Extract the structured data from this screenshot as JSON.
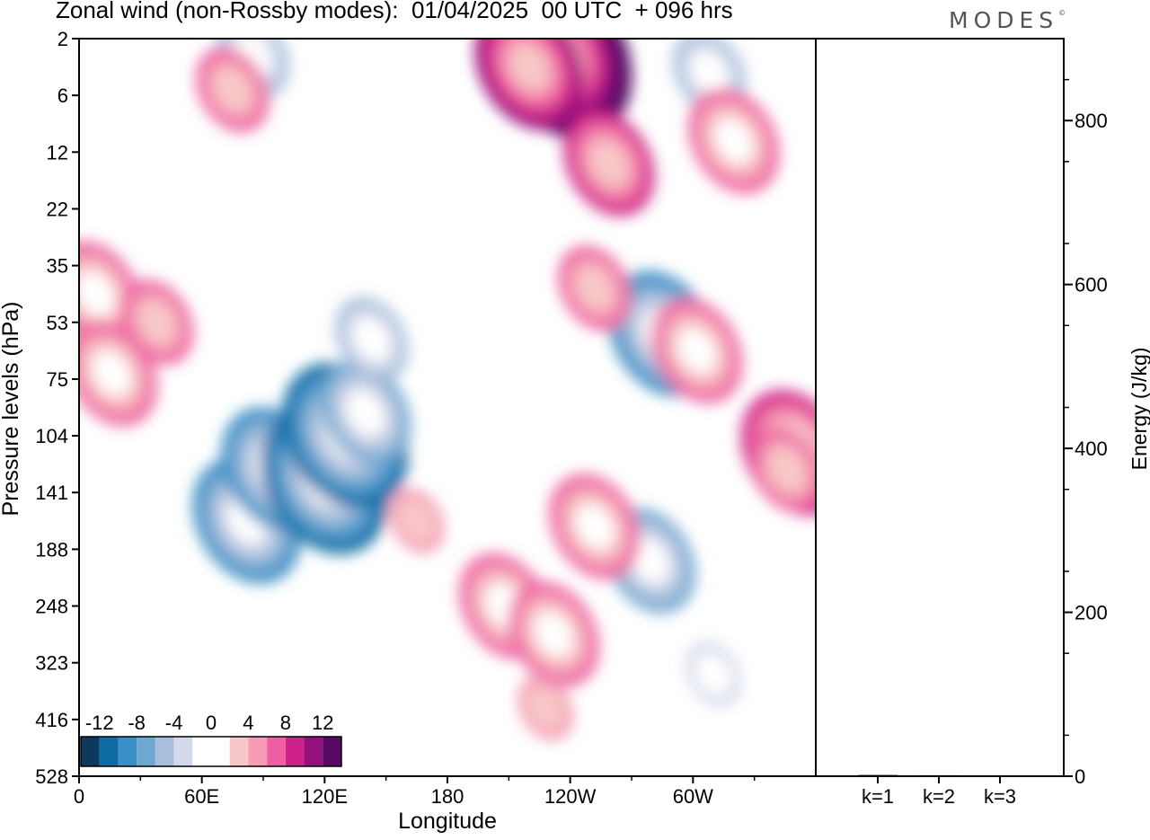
{
  "header": {
    "title": "Zonal wind (non-Rossby modes):  01/04/2025  00 UTC  + 096 hrs",
    "logo_text": "MODES",
    "logo_mark": "©"
  },
  "colors": {
    "levels": [
      "#0d3a5c",
      "#0e6aa3",
      "#3a8fc4",
      "#6ea7d1",
      "#a7bfdc",
      "#d3d8ea",
      "#ffffff",
      "#ffffff",
      "#f8c8c8",
      "#f59bb5",
      "#ed5fa1",
      "#cf2289",
      "#94117b",
      "#560a66"
    ],
    "grid_line": "#000000"
  },
  "chart_data": [
    {
      "type": "heatmap",
      "title": "Zonal wind (non-Rossby modes):  01/04/2025  00 UTC  + 096 hrs",
      "xlabel": "Longitude",
      "ylabel": "Pressure levels (hPa)",
      "x_ticks": [
        "0",
        "60E",
        "120E",
        "180",
        "120W",
        "60W"
      ],
      "x_tick_values": [
        0,
        60,
        120,
        180,
        240,
        300
      ],
      "xlim": [
        0,
        360
      ],
      "y_ticks": [
        "2",
        "6",
        "12",
        "22",
        "35",
        "53",
        "75",
        "104",
        "141",
        "188",
        "248",
        "323",
        "416",
        "528"
      ],
      "colorbar": {
        "tick_labels": [
          "-12",
          "-8",
          "-4",
          "0",
          "4",
          "8",
          "12"
        ],
        "boundaries": [
          -14,
          -12,
          -10,
          -8,
          -6,
          -4,
          -2,
          0,
          2,
          4,
          6,
          8,
          10,
          12,
          14
        ]
      },
      "features": [
        {
          "lon": 82,
          "level": 8.5,
          "value": -9
        },
        {
          "lon": 96,
          "level": 7.6,
          "value": -10
        },
        {
          "lon": 120,
          "level": 7.8,
          "value": -12
        },
        {
          "lon": 130,
          "level": 7.0,
          "value": -11
        },
        {
          "lon": 140,
          "level": 6.6,
          "value": -8
        },
        {
          "lon": 143,
          "level": 5.3,
          "value": -5
        },
        {
          "lon": 285,
          "level": 5.2,
          "value": -9
        },
        {
          "lon": 279,
          "level": 9.2,
          "value": -8
        },
        {
          "lon": 85,
          "level": 0.3,
          "value": -6
        },
        {
          "lon": 308,
          "level": 0.6,
          "value": -6
        },
        {
          "lon": 310,
          "level": 11.2,
          "value": -4
        },
        {
          "lon": 235,
          "level": 0.3,
          "value": 14
        },
        {
          "lon": 220,
          "level": 0.5,
          "value": 10
        },
        {
          "lon": 259,
          "level": 2.2,
          "value": 8
        },
        {
          "lon": 320,
          "level": 1.8,
          "value": 7
        },
        {
          "lon": 75,
          "level": 0.9,
          "value": 6
        },
        {
          "lon": 8,
          "level": 4.5,
          "value": 7
        },
        {
          "lon": 16,
          "level": 5.9,
          "value": 7
        },
        {
          "lon": 38,
          "level": 5.0,
          "value": 6
        },
        {
          "lon": 252,
          "level": 4.4,
          "value": 6
        },
        {
          "lon": 302,
          "level": 5.5,
          "value": 7
        },
        {
          "lon": 350,
          "level": 7.3,
          "value": 9
        },
        {
          "lon": 346,
          "level": 7.6,
          "value": 6
        },
        {
          "lon": 252,
          "level": 8.6,
          "value": 7
        },
        {
          "lon": 208,
          "level": 10.0,
          "value": 7
        },
        {
          "lon": 232,
          "level": 10.5,
          "value": 7
        },
        {
          "lon": 165,
          "level": 8.5,
          "value": 4
        },
        {
          "lon": 228,
          "level": 11.8,
          "value": 4
        }
      ]
    },
    {
      "type": "bar",
      "title": "",
      "xlabel": "",
      "ylabel": "Energy (J/kg)",
      "categories": [
        "k=1",
        "k=2",
        "k=3"
      ],
      "values": [
        1.5,
        1.2,
        1.0
      ],
      "ylim": [
        0,
        900
      ],
      "y_ticks": [
        "0",
        "200",
        "400",
        "600",
        "800"
      ]
    }
  ]
}
